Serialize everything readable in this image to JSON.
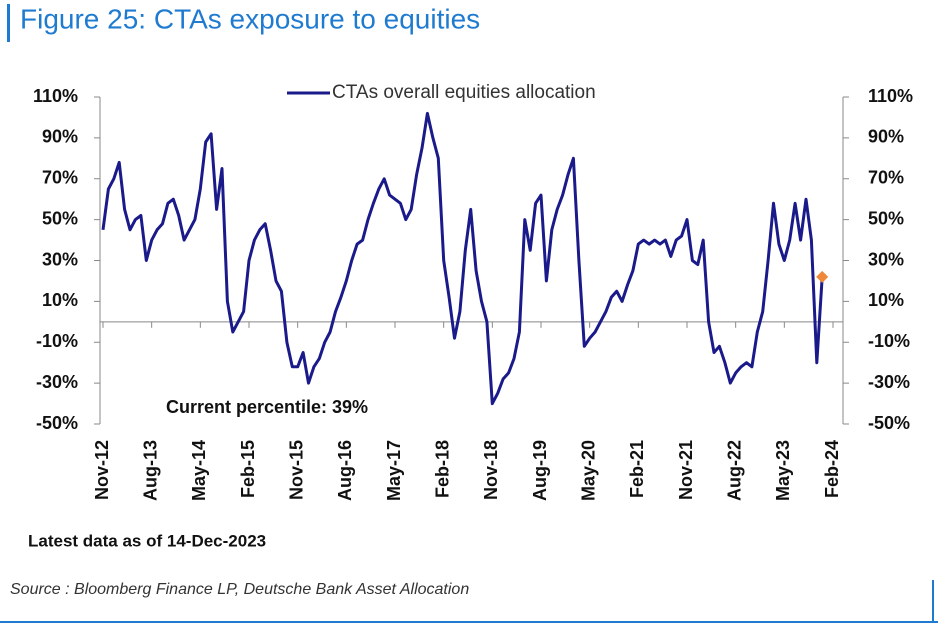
{
  "chart_data": {
    "type": "line",
    "title": "Figure 25: CTAs exposure to equities",
    "categories": [
      "Nov-12",
      null,
      null,
      null,
      null,
      null,
      null,
      null,
      null,
      "Aug-13",
      null,
      null,
      null,
      null,
      null,
      null,
      null,
      null,
      "May-14",
      null,
      null,
      null,
      null,
      null,
      null,
      null,
      null,
      "Feb-15",
      null,
      null,
      null,
      null,
      null,
      null,
      null,
      null,
      "Nov-15",
      null,
      null,
      null,
      null,
      null,
      null,
      null,
      null,
      "Aug-16",
      null,
      null,
      null,
      null,
      null,
      null,
      null,
      null,
      "May-17",
      null,
      null,
      null,
      null,
      null,
      null,
      null,
      null,
      "Feb-18",
      null,
      null,
      null,
      null,
      null,
      null,
      null,
      null,
      "Nov-18",
      null,
      null,
      null,
      null,
      null,
      null,
      null,
      null,
      "Aug-19",
      null,
      null,
      null,
      null,
      null,
      null,
      null,
      null,
      "May-20",
      null,
      null,
      null,
      null,
      null,
      null,
      null,
      null,
      "Feb-21",
      null,
      null,
      null,
      null,
      null,
      null,
      null,
      null,
      "Nov-21",
      null,
      null,
      null,
      null,
      null,
      null,
      null,
      null,
      "Aug-22",
      null,
      null,
      null,
      null,
      null,
      null,
      null,
      null,
      "May-23",
      null,
      null,
      null,
      null,
      null,
      null,
      null,
      null,
      "Feb-24"
    ],
    "series": [
      {
        "name": "CTAs overall equities allocation",
        "color": "#1a1a8a",
        "marker_color": "#f0883a",
        "values": [
          45,
          65,
          70,
          78,
          55,
          45,
          50,
          52,
          30,
          40,
          45,
          48,
          58,
          60,
          52,
          40,
          45,
          50,
          65,
          88,
          92,
          55,
          75,
          10,
          -5,
          0,
          5,
          30,
          40,
          45,
          48,
          35,
          20,
          15,
          -10,
          -22,
          -22,
          -15,
          -30,
          -22,
          -18,
          -10,
          -5,
          5,
          12,
          20,
          30,
          38,
          40,
          50,
          58,
          65,
          70,
          62,
          60,
          58,
          50,
          55,
          72,
          85,
          102,
          90,
          80,
          30,
          12,
          -8,
          5,
          35,
          55,
          25,
          10,
          0,
          -40,
          -35,
          -28,
          -25,
          -18,
          -5,
          50,
          35,
          58,
          62,
          20,
          45,
          55,
          62,
          72,
          80,
          30,
          -12,
          -8,
          -5,
          0,
          5,
          12,
          15,
          10,
          18,
          25,
          38,
          40,
          38,
          40,
          38,
          40,
          32,
          40,
          42,
          50,
          30,
          28,
          40,
          0,
          -15,
          -12,
          -20,
          -30,
          -25,
          -22,
          -20,
          -22,
          -5,
          5,
          30,
          58,
          38,
          30,
          40,
          58,
          40,
          60,
          40,
          -20,
          22,
          null,
          null
        ]
      }
    ],
    "ylim": [
      -50,
      110
    ],
    "yticks": [
      {
        "value": -50,
        "label": "-50%"
      },
      {
        "value": -30,
        "label": "-30%"
      },
      {
        "value": -10,
        "label": "-10%"
      },
      {
        "value": 10,
        "label": "10%"
      },
      {
        "value": 30,
        "label": "30%"
      },
      {
        "value": 50,
        "label": "50%"
      },
      {
        "value": 70,
        "label": "70%"
      },
      {
        "value": 90,
        "label": "90%"
      },
      {
        "value": 110,
        "label": "110%"
      }
    ],
    "y2lim": [
      -50,
      110
    ],
    "y2ticks": [
      {
        "value": -50,
        "label": "-50%"
      },
      {
        "value": -30,
        "label": "-30%"
      },
      {
        "value": -10,
        "label": "-10%"
      },
      {
        "value": 10,
        "label": "10%"
      },
      {
        "value": 30,
        "label": "30%"
      },
      {
        "value": 50,
        "label": "50%"
      },
      {
        "value": 70,
        "label": "70%"
      },
      {
        "value": 90,
        "label": "90%"
      },
      {
        "value": 110,
        "label": "110%"
      }
    ],
    "annotation": "Current percentile: 39%",
    "note": "Latest data as of 14-Dec-2023",
    "source": "Source : Bloomberg Finance LP, Deutsche Bank Asset Allocation"
  }
}
